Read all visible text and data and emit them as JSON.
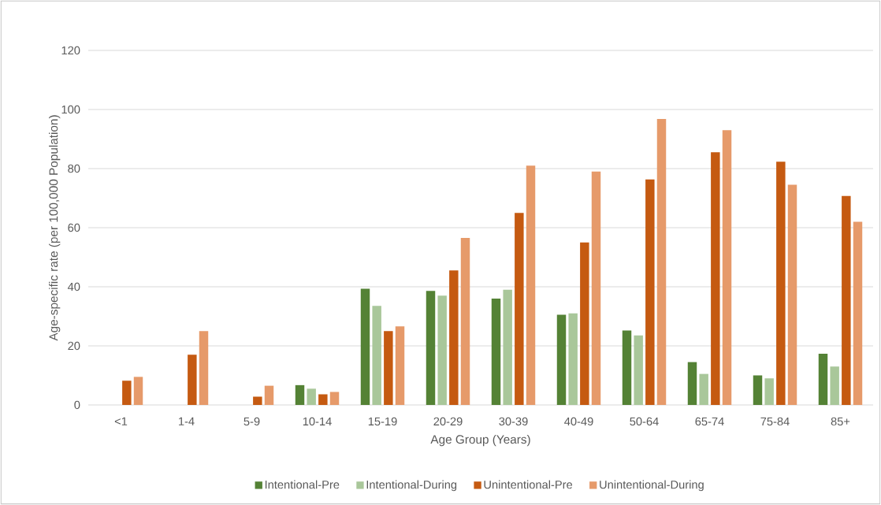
{
  "chart_data": {
    "type": "bar",
    "xlabel": "Age Group (Years)",
    "ylabel": "Age-specific rate (per 100,000 Population)",
    "categories": [
      "<1",
      "1-4",
      "5-9",
      "10-14",
      "15-19",
      "20-29",
      "30-39",
      "40-49",
      "50-64",
      "65-74",
      "75-84",
      "85+"
    ],
    "series": [
      {
        "name": "Intentional-Pre",
        "color": "#548235",
        "values": [
          null,
          null,
          null,
          6.7,
          39.3,
          38.6,
          36,
          30.5,
          25.2,
          14.5,
          10,
          17.3
        ]
      },
      {
        "name": "Intentional-During",
        "color": "#a9c79a",
        "values": [
          null,
          null,
          null,
          5.5,
          33.5,
          37,
          39,
          31,
          23.5,
          10.5,
          9,
          13
        ]
      },
      {
        "name": "Unintentional-Pre",
        "color": "#c55a11",
        "values": [
          8.2,
          17,
          2.8,
          3.6,
          25,
          45.5,
          65,
          55,
          76.3,
          85.5,
          82.3,
          70.7
        ]
      },
      {
        "name": "Unintentional-During",
        "color": "#e69a6a",
        "values": [
          9.5,
          25,
          6.5,
          4.4,
          26.6,
          56.5,
          81,
          79,
          96.8,
          93,
          74.5,
          62
        ]
      }
    ],
    "ylim": [
      0,
      120
    ],
    "yticks": [
      0,
      20,
      40,
      60,
      80,
      100,
      120
    ],
    "grid": "y",
    "legend": "bottom"
  }
}
